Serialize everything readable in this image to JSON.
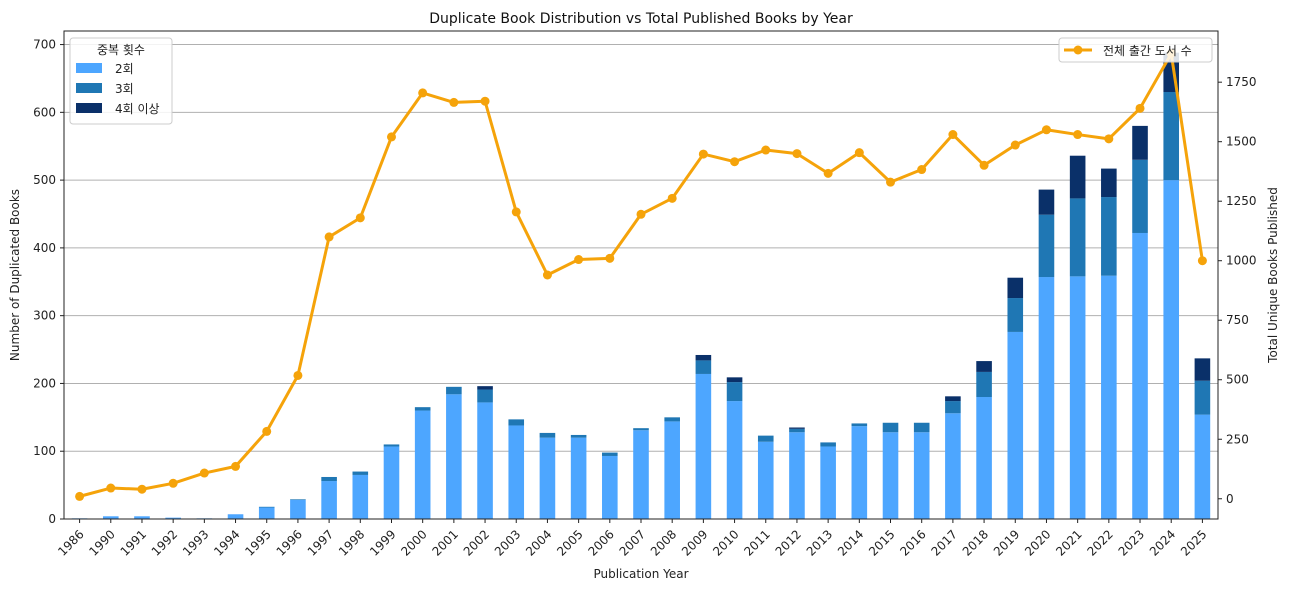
{
  "chart_data": {
    "type": "bar",
    "title": "Duplicate Book Distribution vs Total Published Books by Year",
    "xlabel": "Publication Year",
    "ylabel": "Number of Duplicated Books",
    "y2label": "Total Unique Books Published",
    "ylim": [
      0,
      720
    ],
    "y2lim": [
      -85,
      1965
    ],
    "yticks": [
      0,
      100,
      200,
      300,
      400,
      500,
      600,
      700
    ],
    "y2ticks": [
      0,
      250,
      500,
      750,
      1000,
      1250,
      1500,
      1750
    ],
    "grid": true,
    "categories": [
      "1986",
      "1990",
      "1991",
      "1992",
      "1993",
      "1994",
      "1995",
      "1996",
      "1997",
      "1998",
      "1999",
      "2000",
      "2001",
      "2002",
      "2003",
      "2004",
      "2005",
      "2006",
      "2007",
      "2008",
      "2009",
      "2010",
      "2011",
      "2012",
      "2013",
      "2014",
      "2015",
      "2016",
      "2017",
      "2018",
      "2019",
      "2020",
      "2021",
      "2022",
      "2023",
      "2024",
      "2025"
    ],
    "stack_legend_title": "중복 횟수",
    "stack_legend_position": "top-left",
    "line_legend_position": "top-right",
    "series": [
      {
        "name": "2회",
        "color": "#4da6ff",
        "values": [
          1,
          4,
          4,
          2,
          1,
          7,
          17,
          28,
          56,
          65,
          107,
          160,
          184,
          172,
          138,
          120,
          120,
          93,
          131,
          144,
          214,
          174,
          114,
          128,
          107,
          137,
          128,
          128,
          156,
          180,
          276,
          357,
          358,
          359,
          422,
          500,
          154
        ]
      },
      {
        "name": "3회",
        "color": "#1f77b4",
        "values": [
          0,
          0,
          0,
          0,
          0,
          0,
          1,
          1,
          6,
          5,
          3,
          5,
          11,
          19,
          9,
          7,
          4,
          5,
          3,
          6,
          20,
          28,
          9,
          5,
          6,
          4,
          14,
          14,
          18,
          37,
          50,
          92,
          115,
          116,
          108,
          130,
          50
        ]
      },
      {
        "name": "4회 이상",
        "color": "#0a3069",
        "values": [
          0,
          0,
          0,
          0,
          0,
          0,
          0,
          0,
          0,
          0,
          0,
          0,
          0,
          5,
          0,
          0,
          0,
          0,
          0,
          0,
          8,
          7,
          0,
          2,
          0,
          0,
          0,
          0,
          7,
          16,
          30,
          37,
          63,
          42,
          50,
          58,
          33
        ]
      }
    ],
    "line": {
      "name": "전체 출간 도서 수",
      "color": "#f5a30a",
      "axis": "right",
      "values": [
        10,
        45,
        40,
        65,
        108,
        136,
        283,
        518,
        1100,
        1180,
        1520,
        1705,
        1665,
        1670,
        1205,
        940,
        1005,
        1010,
        1195,
        1262,
        1448,
        1416,
        1465,
        1450,
        1367,
        1454,
        1330,
        1383,
        1530,
        1401,
        1486,
        1550,
        1530,
        1512,
        1640,
        1870,
        1000
      ]
    }
  }
}
